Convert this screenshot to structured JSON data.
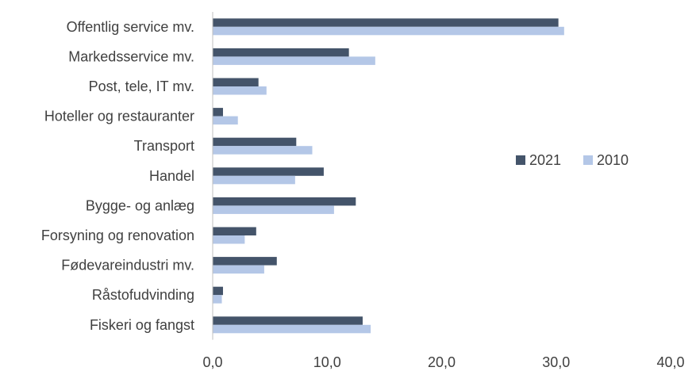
{
  "chart_data": {
    "type": "bar",
    "orientation": "horizontal",
    "categories": [
      "Offentlig service mv.",
      "Markedsservice mv.",
      "Post, tele, IT mv.",
      "Hoteller og restauranter",
      "Transport",
      "Handel",
      "Bygge- og anlæg",
      "Forsyning og renovation",
      "Fødevareindustri mv.",
      "Råstofudvinding",
      "Fiskeri og fangst"
    ],
    "series": [
      {
        "name": "2021",
        "color": "#44546a",
        "values": [
          30.2,
          11.9,
          4.0,
          0.9,
          7.3,
          9.7,
          12.5,
          3.8,
          5.6,
          0.9,
          13.1
        ]
      },
      {
        "name": "2010",
        "color": "#b4c7e7",
        "values": [
          30.7,
          14.2,
          4.7,
          2.2,
          8.7,
          7.2,
          10.6,
          2.8,
          4.5,
          0.8,
          13.8
        ]
      }
    ],
    "xlim": [
      0,
      40
    ],
    "xticks": [
      0,
      10,
      20,
      30,
      40
    ],
    "xtick_labels": [
      "0,0",
      "10,0",
      "20,0",
      "30,0",
      "40,0"
    ],
    "title": "",
    "xlabel": "",
    "ylabel": "",
    "grid": false,
    "legend_position": "right"
  }
}
